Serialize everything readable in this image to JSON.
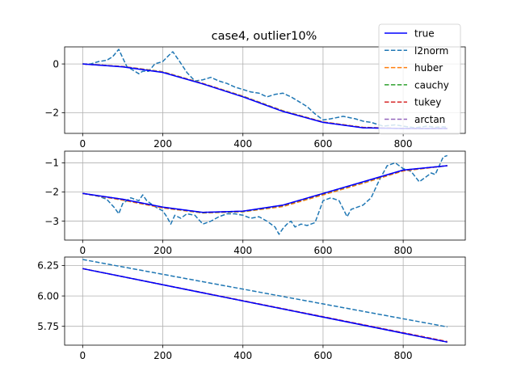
{
  "figure": {
    "title": "case4, outlier10%"
  },
  "colors": {
    "true": "#0000ff",
    "l2norm": "#1f77b4",
    "huber": "#ff7f0e",
    "cauchy": "#2ca02c",
    "tukey": "#d62728",
    "arctan": "#9467bd",
    "grid": "#b0b0b0"
  },
  "legend": {
    "placement": "top-right",
    "entries": [
      {
        "key": "true",
        "label": "true",
        "style": "solid"
      },
      {
        "key": "l2norm",
        "label": "l2norm",
        "style": "dashed"
      },
      {
        "key": "huber",
        "label": "huber",
        "style": "dashed"
      },
      {
        "key": "cauchy",
        "label": "cauchy",
        "style": "dashed"
      },
      {
        "key": "tukey",
        "label": "tukey",
        "style": "dashed"
      },
      {
        "key": "arctan",
        "label": "arctan",
        "style": "dashed"
      }
    ]
  },
  "chart_data": [
    {
      "type": "line",
      "title": "case4, outlier10%",
      "xlim": [
        -45,
        955
      ],
      "ylim": [
        -2.85,
        0.7
      ],
      "xticks": [
        0,
        200,
        400,
        600,
        800
      ],
      "xtick_labels": [
        "0",
        "200",
        "400",
        "600",
        "800"
      ],
      "yticks": [
        0,
        -2
      ],
      "ytick_labels": [
        "0",
        "−2"
      ],
      "grid": true,
      "series": [
        {
          "name": "true",
          "key": "true",
          "x": [
            0,
            100,
            200,
            300,
            400,
            500,
            600,
            700,
            800,
            910
          ],
          "y": [
            0,
            -0.12,
            -0.35,
            -0.82,
            -1.35,
            -1.95,
            -2.4,
            -2.62,
            -2.65,
            -2.65
          ]
        },
        {
          "name": "l2norm",
          "key": "l2norm",
          "x": [
            0,
            20,
            40,
            60,
            75,
            90,
            100,
            110,
            125,
            140,
            150,
            165,
            180,
            200,
            215,
            225,
            240,
            260,
            280,
            300,
            320,
            340,
            360,
            380,
            400,
            420,
            440,
            460,
            480,
            500,
            520,
            540,
            560,
            580,
            600,
            620,
            650,
            680,
            700,
            720,
            750,
            780,
            800,
            830,
            860,
            880,
            900,
            910
          ],
          "y": [
            0,
            0.0,
            0.1,
            0.15,
            0.3,
            0.6,
            0.25,
            -0.1,
            -0.25,
            -0.4,
            -0.3,
            -0.3,
            0.0,
            0.1,
            0.35,
            0.5,
            0.15,
            -0.35,
            -0.7,
            -0.65,
            -0.55,
            -0.7,
            -0.8,
            -0.95,
            -1.05,
            -1.15,
            -1.2,
            -1.35,
            -1.25,
            -1.2,
            -1.35,
            -1.55,
            -1.75,
            -2.05,
            -2.3,
            -2.25,
            -2.15,
            -2.25,
            -2.35,
            -2.4,
            -2.55,
            -2.5,
            -2.55,
            -2.62,
            -2.55,
            -2.6,
            -2.58,
            -2.6
          ]
        },
        {
          "name": "huber",
          "key": "huber",
          "x": [
            0,
            100,
            200,
            300,
            400,
            500,
            600,
            700,
            800,
            910
          ],
          "y": [
            0,
            -0.1,
            -0.32,
            -0.8,
            -1.32,
            -1.92,
            -2.38,
            -2.6,
            -2.65,
            -2.65
          ]
        },
        {
          "name": "cauchy",
          "key": "cauchy",
          "x": [
            0,
            100,
            200,
            300,
            400,
            500,
            600,
            700,
            800,
            910
          ],
          "y": [
            0,
            -0.11,
            -0.33,
            -0.81,
            -1.33,
            -1.93,
            -2.39,
            -2.61,
            -2.65,
            -2.65
          ]
        },
        {
          "name": "tukey",
          "key": "tukey",
          "x": [
            0,
            100,
            200,
            300,
            400,
            500,
            600,
            700,
            800,
            910
          ],
          "y": [
            0,
            -0.11,
            -0.34,
            -0.81,
            -1.34,
            -1.94,
            -2.39,
            -2.61,
            -2.65,
            -2.65
          ]
        },
        {
          "name": "arctan",
          "key": "arctan",
          "x": [
            0,
            100,
            200,
            300,
            400,
            500,
            600,
            700,
            800,
            910
          ],
          "y": [
            0,
            -0.11,
            -0.34,
            -0.82,
            -1.34,
            -1.94,
            -2.4,
            -2.62,
            -2.65,
            -2.65
          ]
        }
      ]
    },
    {
      "type": "line",
      "xlim": [
        -45,
        955
      ],
      "ylim": [
        -3.65,
        -0.6
      ],
      "xticks": [
        0,
        200,
        400,
        600,
        800
      ],
      "xtick_labels": [
        "0",
        "200",
        "400",
        "600",
        "800"
      ],
      "yticks": [
        -1,
        -2,
        -3
      ],
      "ytick_labels": [
        "−1",
        "−2",
        "−3"
      ],
      "grid": true,
      "series": [
        {
          "name": "true",
          "key": "true",
          "x": [
            0,
            100,
            200,
            300,
            400,
            500,
            600,
            700,
            800,
            910
          ],
          "y": [
            -2.05,
            -2.25,
            -2.52,
            -2.7,
            -2.66,
            -2.45,
            -2.05,
            -1.65,
            -1.25,
            -1.1
          ]
        },
        {
          "name": "l2norm",
          "key": "l2norm",
          "x": [
            0,
            20,
            40,
            60,
            80,
            90,
            100,
            120,
            140,
            150,
            160,
            180,
            200,
            210,
            220,
            230,
            245,
            260,
            280,
            300,
            320,
            340,
            360,
            380,
            400,
            420,
            440,
            460,
            480,
            490,
            500,
            510,
            520,
            530,
            545,
            560,
            580,
            600,
            620,
            640,
            660,
            670,
            680,
            700,
            720,
            740,
            760,
            780,
            800,
            820,
            840,
            860,
            870,
            880,
            900,
            910
          ],
          "y": [
            -2.05,
            -2.1,
            -2.15,
            -2.25,
            -2.55,
            -2.75,
            -2.4,
            -2.2,
            -2.3,
            -2.1,
            -2.3,
            -2.5,
            -2.65,
            -2.85,
            -3.1,
            -2.8,
            -2.9,
            -2.75,
            -2.8,
            -3.1,
            -3.0,
            -2.85,
            -2.75,
            -2.75,
            -2.8,
            -2.9,
            -2.85,
            -3.0,
            -3.2,
            -3.45,
            -3.25,
            -3.1,
            -3.0,
            -3.2,
            -3.1,
            -3.15,
            -3.05,
            -2.3,
            -2.2,
            -2.3,
            -2.85,
            -2.6,
            -2.55,
            -2.45,
            -2.2,
            -1.6,
            -1.1,
            -1.0,
            -1.2,
            -1.3,
            -1.65,
            -1.45,
            -1.35,
            -1.4,
            -0.8,
            -0.75
          ]
        },
        {
          "name": "huber",
          "key": "huber",
          "x": [
            0,
            100,
            200,
            300,
            400,
            500,
            600,
            700,
            800,
            910
          ],
          "y": [
            -2.05,
            -2.28,
            -2.55,
            -2.72,
            -2.68,
            -2.5,
            -2.1,
            -1.7,
            -1.28,
            -1.1
          ]
        },
        {
          "name": "cauchy",
          "key": "cauchy",
          "x": [
            0,
            100,
            200,
            300,
            400,
            500,
            600,
            700,
            800,
            910
          ],
          "y": [
            -2.05,
            -2.26,
            -2.53,
            -2.71,
            -2.67,
            -2.47,
            -2.07,
            -1.67,
            -1.26,
            -1.1
          ]
        },
        {
          "name": "tukey",
          "key": "tukey",
          "x": [
            0,
            100,
            200,
            300,
            400,
            500,
            600,
            700,
            800,
            910
          ],
          "y": [
            -2.05,
            -2.26,
            -2.53,
            -2.7,
            -2.66,
            -2.46,
            -2.06,
            -1.66,
            -1.26,
            -1.1
          ]
        },
        {
          "name": "arctan",
          "key": "arctan",
          "x": [
            0,
            100,
            200,
            300,
            400,
            500,
            600,
            700,
            800,
            910
          ],
          "y": [
            -2.05,
            -2.25,
            -2.52,
            -2.7,
            -2.66,
            -2.45,
            -2.05,
            -1.66,
            -1.25,
            -1.1
          ]
        }
      ]
    },
    {
      "type": "line",
      "xlim": [
        -45,
        955
      ],
      "ylim": [
        5.595,
        6.32
      ],
      "xticks": [
        0,
        200,
        400,
        600,
        800
      ],
      "xtick_labels": [
        "0",
        "200",
        "400",
        "600",
        "800"
      ],
      "yticks": [
        6.25,
        6.0,
        5.75
      ],
      "ytick_labels": [
        "6.25",
        "6.00",
        "5.75"
      ],
      "grid": true,
      "series": [
        {
          "name": "true",
          "key": "true",
          "x": [
            0,
            910
          ],
          "y": [
            6.225,
            5.62
          ]
        },
        {
          "name": "l2norm",
          "key": "l2norm",
          "x": [
            0,
            910
          ],
          "y": [
            6.3,
            5.745
          ]
        },
        {
          "name": "huber",
          "key": "huber",
          "x": [
            0,
            910
          ],
          "y": [
            6.225,
            5.62
          ]
        },
        {
          "name": "cauchy",
          "key": "cauchy",
          "x": [
            0,
            910
          ],
          "y": [
            6.225,
            5.62
          ]
        },
        {
          "name": "tukey",
          "key": "tukey",
          "x": [
            0,
            910
          ],
          "y": [
            6.225,
            5.625
          ]
        },
        {
          "name": "arctan",
          "key": "arctan",
          "x": [
            0,
            910
          ],
          "y": [
            6.225,
            5.62
          ]
        }
      ]
    }
  ]
}
